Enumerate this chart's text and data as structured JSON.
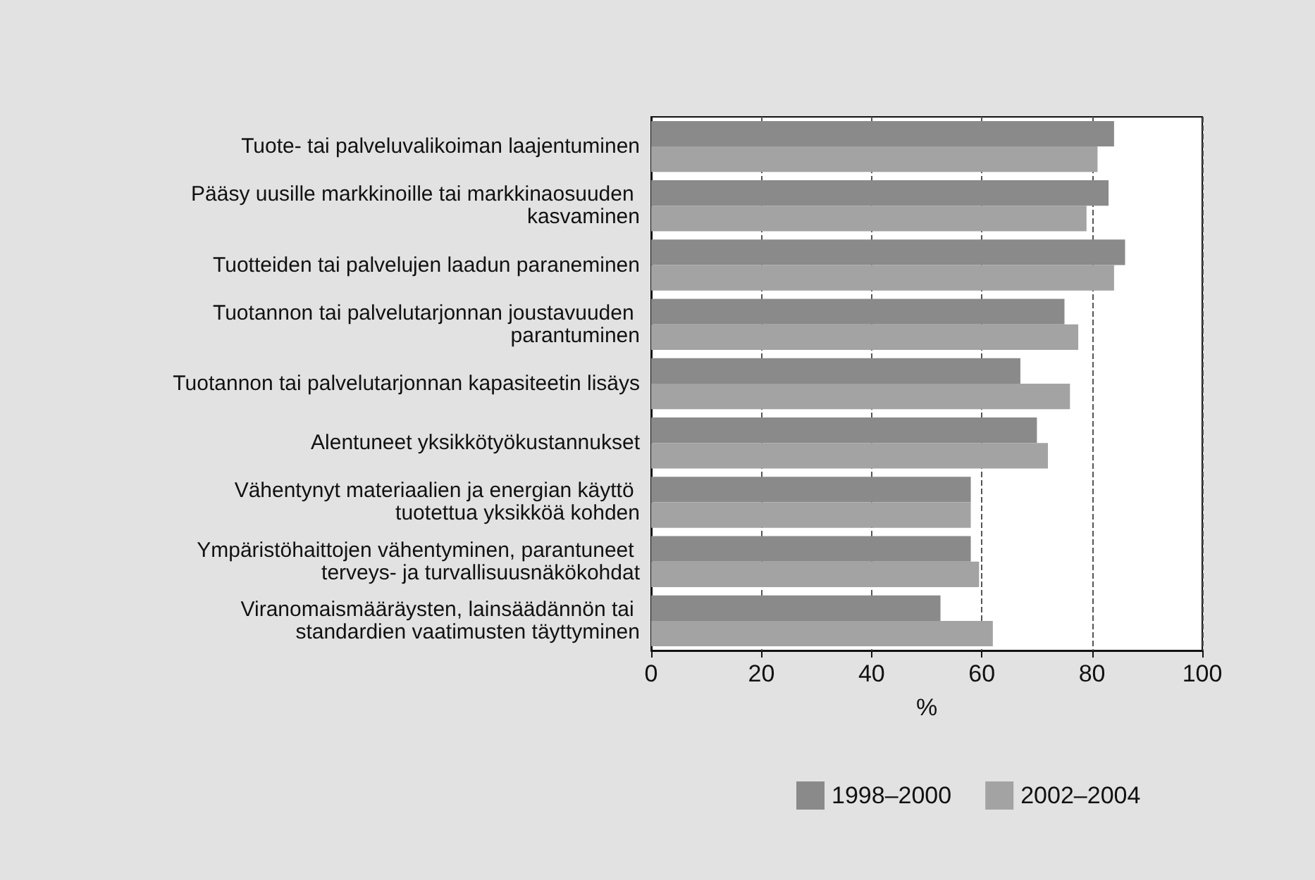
{
  "chart_data": {
    "type": "bar",
    "orientation": "horizontal",
    "xlabel": "%",
    "categories": [
      "Tuote- tai palveluvalikoiman laajentuminen",
      "Pääsy uusille markkinoille tai markkinaosuuden kasvaminen",
      "Tuotteiden tai palvelujen laadun paraneminen",
      "Tuotannon tai palvelutarjonnan joustavuuden parantuminen",
      "Tuotannon tai palvelutarjonnan kapasiteetin lisäys",
      "Alentuneet yksikkötyökustannukset",
      "Vähentynyt materiaalien ja energian käyttö tuotettua yksikköä kohden",
      "Ympäristöhaittojen vähentyminen, parantuneet terveys- ja turvallisuusnäkökohdat",
      "Viranomaismääräysten, lainsäädännön tai standardien vaatimusten täyttyminen"
    ],
    "series": [
      {
        "name": "1998–2000",
        "color": "#8a8a8a",
        "values": [
          84,
          83,
          86,
          75,
          67,
          70,
          58,
          58,
          52.5
        ]
      },
      {
        "name": "2002–2004",
        "color": "#a3a3a3",
        "values": [
          81,
          79,
          84,
          77.5,
          76,
          72,
          58,
          59.5,
          62
        ]
      }
    ],
    "xlim": [
      0,
      100
    ],
    "xticks": [
      0,
      20,
      40,
      60,
      80,
      100
    ],
    "grid": "x",
    "legend": "bottom"
  }
}
